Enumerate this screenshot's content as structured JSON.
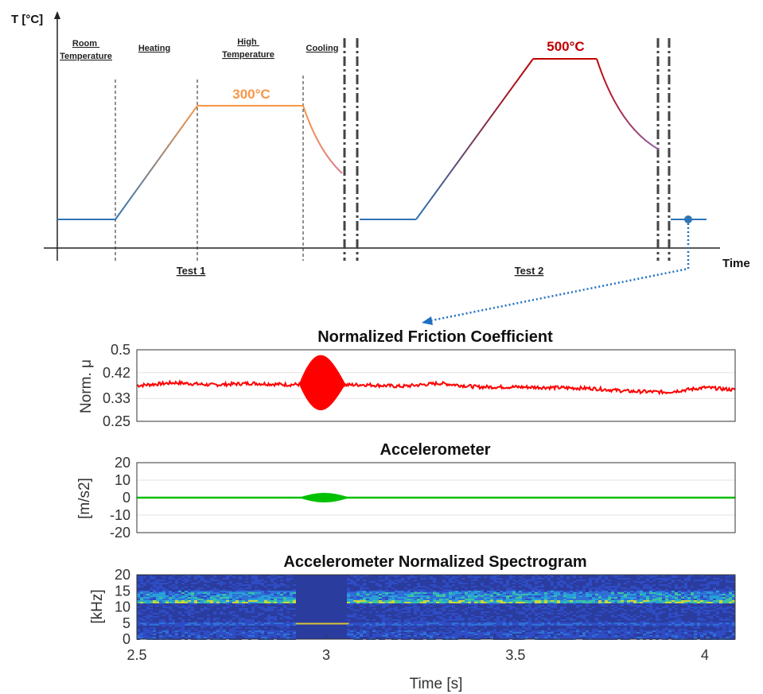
{
  "chart_data": [
    {
      "type": "line",
      "ylabel": "T [°C]",
      "xlabel": "Time",
      "phases": [
        "Room Temperature",
        "Heating",
        "High Temperature",
        "Cooling"
      ],
      "tests": [
        "Test 1",
        "Test 2"
      ],
      "annotations": [
        "300°C",
        "500°C"
      ],
      "series": [
        {
          "values": [
            300
          ],
          "color": "#f79646"
        },
        {
          "values": [
            500
          ],
          "color": "#c00000"
        }
      ]
    },
    {
      "type": "line",
      "title": "Normalized Friction Coefficient",
      "ylabel": "Norm. μ",
      "yticks": [
        "0.5",
        "0.42",
        "0.33",
        "0.25"
      ],
      "ylim": [
        0.25,
        0.5
      ],
      "xlim": [
        2.5,
        4.08
      ],
      "color": "#ff0000",
      "x": [
        2.5,
        2.6,
        2.7,
        2.8,
        2.9,
        2.95,
        3.0,
        3.05,
        3.1,
        3.2,
        3.3,
        3.4,
        3.5,
        3.6,
        3.7,
        3.8,
        3.9,
        4.0,
        4.08
      ],
      "y": [
        0.375,
        0.385,
        0.377,
        0.383,
        0.378,
        0.38,
        0.38,
        0.377,
        0.378,
        0.372,
        0.383,
        0.37,
        0.37,
        0.368,
        0.365,
        0.355,
        0.352,
        0.368,
        0.36
      ],
      "burst": {
        "start": 2.93,
        "end": 3.05,
        "peak": 3.0,
        "min": 0.29,
        "max": 0.48
      }
    },
    {
      "type": "line",
      "title": "Accelerometer",
      "ylabel": "[m/s2]",
      "yticks": [
        "20",
        "10",
        "0",
        "-10",
        "-20"
      ],
      "ylim": [
        -20,
        20
      ],
      "xlim": [
        2.5,
        4.08
      ],
      "color": "#00c000",
      "burst": {
        "start": 2.93,
        "end": 3.06,
        "peak": 3.0,
        "amplitude": 2.5
      }
    },
    {
      "type": "heatmap",
      "title": "Accelerometer Normalized Spectrogram",
      "ylabel": "[kHz]",
      "xlabel": "Time [s]",
      "yticks": [
        "20",
        "15",
        "10",
        "5",
        "0"
      ],
      "xticks": [
        "2.5",
        "3",
        "3.5",
        "4"
      ],
      "ylim": [
        0,
        20
      ],
      "xlim": [
        2.5,
        4.08
      ],
      "bands_khz": [
        11.8,
        13.5,
        15.0,
        4.8,
        2.0
      ]
    }
  ]
}
